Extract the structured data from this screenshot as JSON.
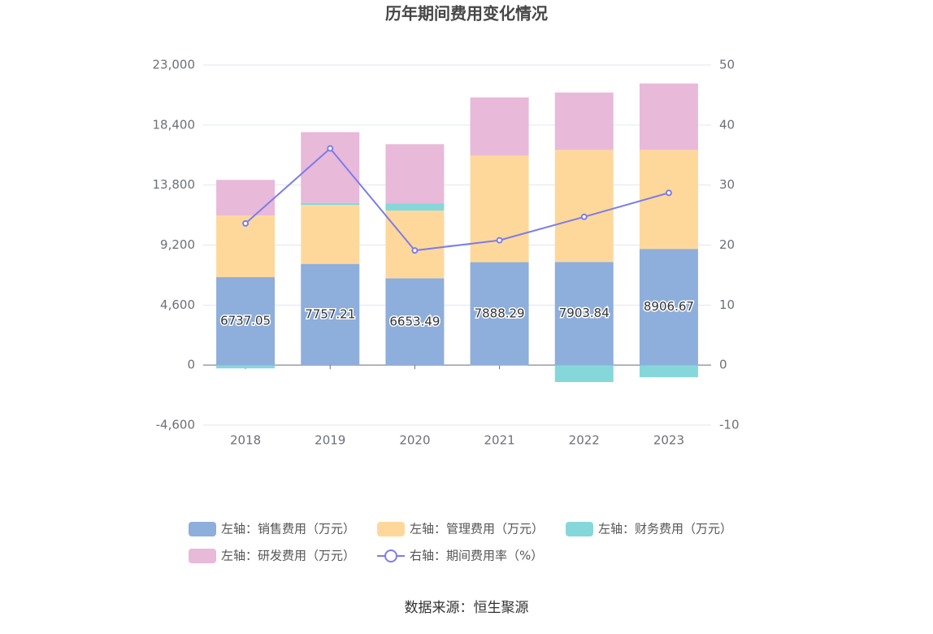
{
  "chart_data": {
    "type": "bar",
    "title": "历年期间费用变化情况",
    "categories": [
      "2018",
      "2019",
      "2020",
      "2021",
      "2022",
      "2023"
    ],
    "series": [
      {
        "name": "左轴：销售费用（万元）",
        "color": "#8eaedb",
        "values": [
          6737.05,
          7757.21,
          6653.49,
          7888.29,
          7903.84,
          8906.67
        ],
        "value_labels": [
          "6737.05",
          "7757.21",
          "6653.49",
          "7888.29",
          "7903.84",
          "8906.67"
        ]
      },
      {
        "name": "左轴：管理费用（万元）",
        "color": "#fed89b",
        "values": [
          4730,
          4520,
          5190,
          8170,
          8590,
          7590
        ]
      },
      {
        "name": "左轴：财务费用（万元）",
        "color": "#86d7da",
        "values": [
          -250,
          150,
          560,
          -30,
          -1300,
          -930
        ]
      },
      {
        "name": "左轴：研发费用（万元）",
        "color": "#e8b9d9",
        "values": [
          2730,
          5430,
          4530,
          4460,
          4400,
          5090
        ]
      },
      {
        "name": "右轴：期间费用率（%）",
        "color": "#7b7de8",
        "type": "line",
        "axis": "y2",
        "values": [
          23.6,
          36.1,
          19.1,
          20.8,
          24.7,
          28.7
        ]
      }
    ],
    "ylim": [
      -4600,
      23000
    ],
    "yticks": [
      {
        "value": -4600,
        "label": "-4,600"
      },
      0,
      {
        "value": 4600,
        "label": "4,600"
      },
      {
        "value": 9200,
        "label": "9,200"
      },
      {
        "value": 13800,
        "label": "13,800"
      },
      {
        "value": 18400,
        "label": "18,400"
      },
      {
        "value": 23000,
        "label": "23,000"
      }
    ],
    "y2lim": [
      -10,
      50
    ],
    "y2ticks": [
      -10,
      0,
      10,
      20,
      30,
      40,
      50
    ],
    "grid": true,
    "source": "数据来源：恒生聚源"
  }
}
